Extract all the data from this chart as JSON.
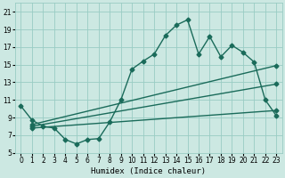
{
  "xlabel": "Humidex (Indice chaleur)",
  "bg_color": "#cce8e2",
  "grid_color": "#99ccc4",
  "line_color": "#1a6b5a",
  "xlim": [
    -0.5,
    23.5
  ],
  "ylim": [
    5,
    22
  ],
  "yticks": [
    5,
    7,
    9,
    11,
    13,
    15,
    17,
    19,
    21
  ],
  "xticks": [
    0,
    1,
    2,
    3,
    4,
    5,
    6,
    7,
    8,
    9,
    10,
    11,
    12,
    13,
    14,
    15,
    16,
    17,
    18,
    19,
    20,
    21,
    22,
    23
  ],
  "line1_x": [
    0,
    1,
    2,
    3,
    4,
    5,
    6,
    7,
    8,
    9,
    10,
    11,
    12,
    13,
    14,
    15,
    16,
    17,
    18,
    19,
    20,
    21,
    22,
    23
  ],
  "line1_y": [
    10.3,
    8.7,
    8.0,
    7.8,
    6.5,
    6.0,
    6.5,
    6.6,
    8.5,
    11.0,
    14.5,
    15.4,
    16.2,
    18.3,
    19.5,
    20.1,
    16.2,
    18.2,
    15.9,
    17.2,
    16.4,
    15.3,
    11.0,
    9.2
  ],
  "line2_x": [
    1,
    23
  ],
  "line2_y": [
    8.2,
    14.9
  ],
  "line3_x": [
    1,
    23
  ],
  "line3_y": [
    8.0,
    12.8
  ],
  "line4_x": [
    1,
    23
  ],
  "line4_y": [
    7.8,
    9.8
  ],
  "marker": "D",
  "markersize": 2.5,
  "linewidth": 1.0
}
